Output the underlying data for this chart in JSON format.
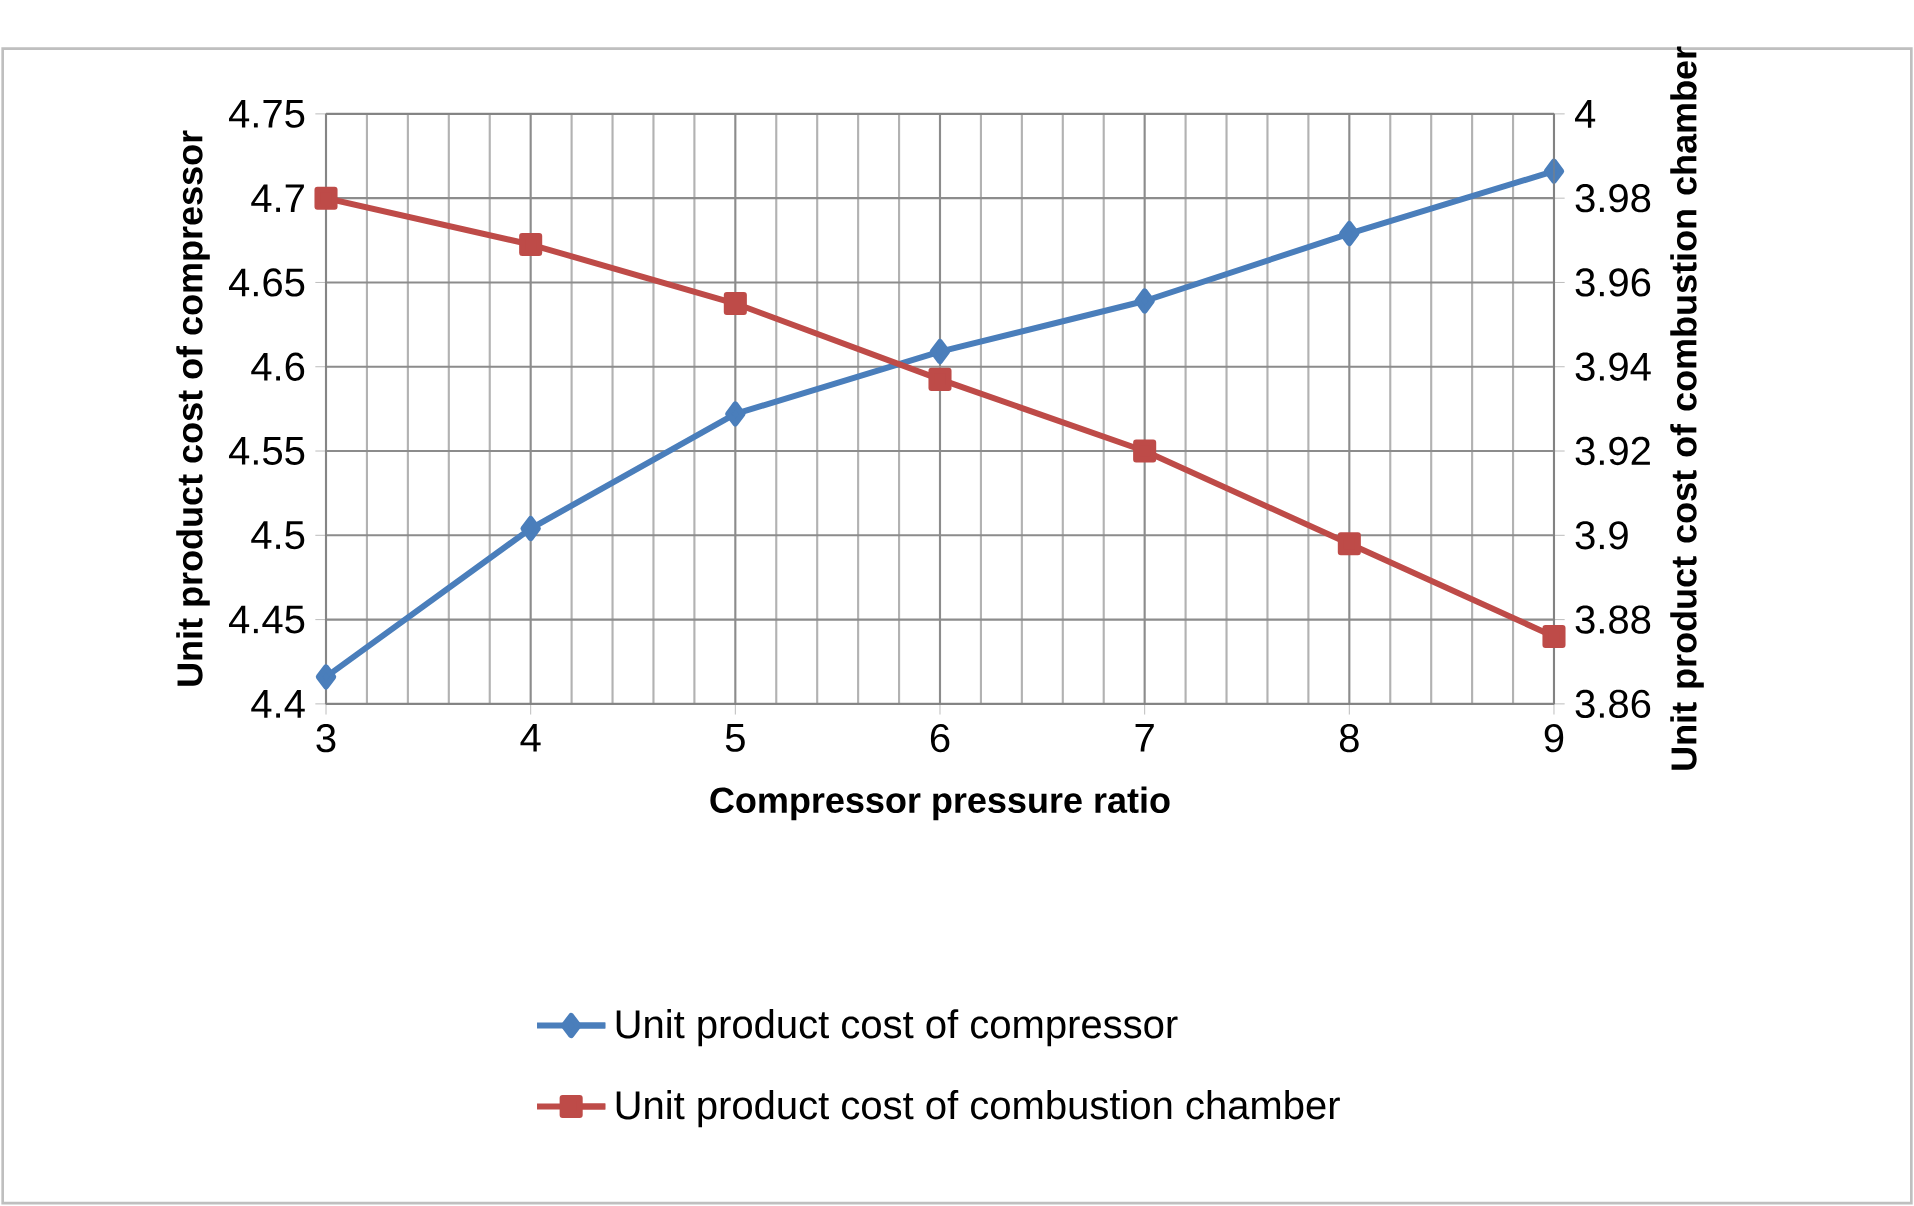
{
  "chart_data": {
    "type": "line",
    "xlabel": "Compressor pressure ratio",
    "ylabel": "Unit product cost  of compressor",
    "y2label": "Unit product cost of combustion chamber",
    "x": [
      3,
      4,
      5,
      6,
      7,
      8,
      9
    ],
    "xlim": [
      3,
      9
    ],
    "xticks": [
      3,
      4,
      5,
      6,
      7,
      8,
      9
    ],
    "ylim": [
      4.4,
      4.75
    ],
    "yticks": [
      4.4,
      4.45,
      4.5,
      4.55,
      4.6,
      4.65,
      4.7,
      4.75
    ],
    "y2lim": [
      3.86,
      4
    ],
    "y2ticks": [
      3.86,
      3.88,
      3.9,
      3.92,
      3.94,
      3.96,
      3.98,
      4
    ],
    "grid": true,
    "legend": "bottom",
    "series": [
      {
        "name": "Unit product cost of compressor",
        "color": "#4a7ebb",
        "marker": "diamond",
        "values": [
          4.416,
          4.504,
          4.572,
          4.609,
          4.639,
          4.679,
          4.716
        ]
      },
      {
        "name": "Unit product cost of combustion chamber",
        "color": "#be4b48",
        "marker": "square",
        "axis": "y2",
        "values": [
          3.98,
          3.969,
          3.955,
          3.937,
          3.92,
          3.898,
          3.876
        ]
      }
    ]
  }
}
